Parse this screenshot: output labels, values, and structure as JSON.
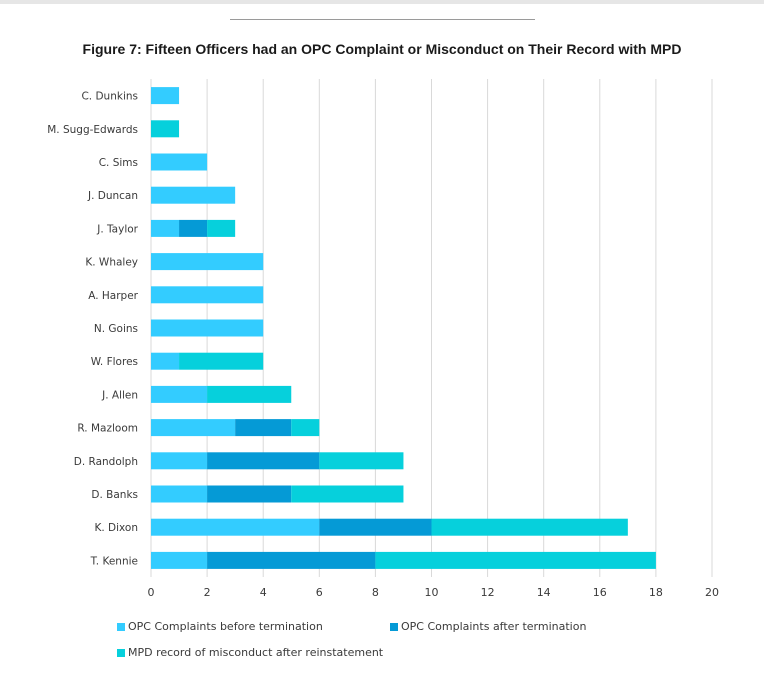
{
  "chart_data": {
    "type": "bar",
    "orientation": "horizontal",
    "stacked": true,
    "title": "Figure 7: Fifteen Officers had an OPC Complaint or Misconduct on Their Record with MPD",
    "categories": [
      "C. Dunkins",
      "M. Sugg-Edwards",
      "C. Sims",
      "J. Duncan",
      "J. Taylor",
      "K. Whaley",
      "A. Harper",
      "N. Goins",
      "W. Flores",
      "J. Allen",
      "R. Mazloom",
      "D. Randolph",
      "D. Banks",
      "K. Dixon",
      "T. Kennie"
    ],
    "series": [
      {
        "name": "OPC Complaints before termination",
        "color": "#33ccff",
        "values": [
          1,
          0,
          2,
          3,
          1,
          4,
          4,
          4,
          1,
          2,
          3,
          2,
          2,
          6,
          2
        ]
      },
      {
        "name": "OPC Complaints after termination",
        "color": "#059ad6",
        "values": [
          0,
          0,
          0,
          0,
          1,
          0,
          0,
          0,
          0,
          0,
          2,
          4,
          3,
          4,
          6
        ]
      },
      {
        "name": "MPD record of misconduct after reinstatement",
        "color": "#06d0dc",
        "values": [
          0,
          1,
          0,
          0,
          1,
          0,
          0,
          0,
          3,
          3,
          1,
          3,
          4,
          7,
          10
        ]
      }
    ],
    "xlim": [
      0,
      20
    ],
    "xticks": [
      "0",
      "2",
      "4",
      "6",
      "8",
      "10",
      "12",
      "14",
      "16",
      "18",
      "20"
    ],
    "grid": true,
    "legend_position": "bottom"
  }
}
